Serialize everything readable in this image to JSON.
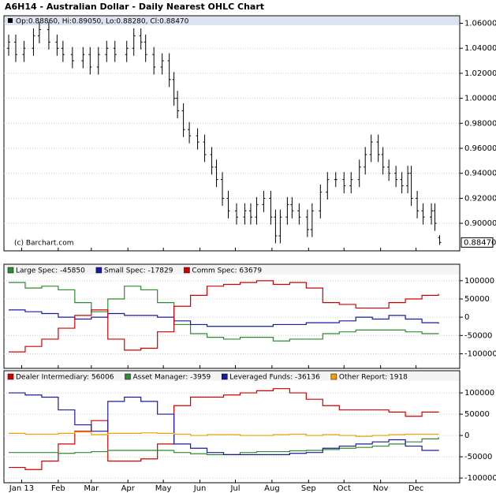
{
  "title": "A6H14 - Australian Dollar - Daily Nearest OHLC Chart",
  "chart_data": [
    {
      "type": "ohlc",
      "legend_text": "Op:0.88860, Hi:0.89050, Lo:0.88280, Cl:0.88470",
      "copyright": "(c) Barchart.com",
      "last_label": "0.88470",
      "color": "#000000",
      "xlim": [
        -15,
        371
      ],
      "ylim": [
        0.878,
        1.066
      ],
      "yticks": [
        {
          "value": 0.9,
          "label": "0.90000"
        },
        {
          "value": 0.92,
          "label": "0.92000"
        },
        {
          "value": 0.94,
          "label": "0.94000"
        },
        {
          "value": 0.96,
          "label": "0.96000"
        },
        {
          "value": 0.98,
          "label": "0.98000"
        },
        {
          "value": 1.0,
          "label": "1.00000"
        },
        {
          "value": 1.02,
          "label": "1.02000"
        },
        {
          "value": 1.04,
          "label": "1.04000"
        },
        {
          "value": 1.06,
          "label": "1.06000"
        }
      ],
      "x": [
        -11,
        -5,
        2,
        10,
        15,
        23,
        30,
        35,
        43,
        52,
        58,
        65,
        72,
        79,
        89,
        95,
        101,
        105,
        112,
        119,
        125,
        129,
        132,
        137,
        142,
        149,
        155,
        161,
        165,
        170,
        175,
        182,
        189,
        194,
        199,
        205,
        211,
        215,
        219,
        225,
        229,
        235,
        242,
        246,
        253,
        259,
        266,
        273,
        279,
        286,
        291,
        296,
        302,
        306,
        311,
        317,
        322,
        327,
        330,
        335,
        340,
        347,
        350,
        354
      ],
      "open": [
        1.04,
        1.045,
        1.035,
        1.04,
        1.05,
        1.055,
        1.045,
        1.04,
        1.035,
        1.03,
        1.035,
        1.025,
        1.035,
        1.04,
        1.035,
        1.04,
        1.05,
        1.045,
        1.035,
        1.025,
        1.03,
        1.015,
        1.0,
        0.99,
        0.975,
        0.97,
        0.965,
        0.955,
        0.945,
        0.935,
        0.92,
        0.91,
        0.905,
        0.91,
        0.905,
        0.915,
        0.92,
        0.905,
        0.89,
        0.905,
        0.915,
        0.91,
        0.905,
        0.895,
        0.91,
        0.925,
        0.935,
        0.935,
        0.93,
        0.935,
        0.945,
        0.955,
        0.965,
        0.955,
        0.945,
        0.94,
        0.935,
        0.93,
        0.94,
        0.92,
        0.91,
        0.905,
        0.91,
        0.8886
      ],
      "high": [
        1.051,
        1.051,
        1.046,
        1.056,
        1.061,
        1.061,
        1.051,
        1.046,
        1.041,
        1.041,
        1.041,
        1.041,
        1.046,
        1.046,
        1.046,
        1.056,
        1.056,
        1.051,
        1.041,
        1.036,
        1.036,
        1.021,
        1.006,
        0.996,
        0.981,
        0.976,
        0.971,
        0.961,
        0.951,
        0.941,
        0.926,
        0.916,
        0.916,
        0.916,
        0.921,
        0.926,
        0.926,
        0.911,
        0.911,
        0.921,
        0.921,
        0.916,
        0.911,
        0.916,
        0.931,
        0.941,
        0.941,
        0.941,
        0.941,
        0.951,
        0.961,
        0.971,
        0.971,
        0.961,
        0.951,
        0.946,
        0.941,
        0.946,
        0.946,
        0.926,
        0.916,
        0.916,
        0.916,
        0.8905
      ],
      "low": [
        1.034,
        1.029,
        1.029,
        1.034,
        1.044,
        1.039,
        1.034,
        1.029,
        1.024,
        1.024,
        1.019,
        1.019,
        1.029,
        1.029,
        1.029,
        1.034,
        1.039,
        1.029,
        1.019,
        1.019,
        1.009,
        0.994,
        0.984,
        0.969,
        0.964,
        0.959,
        0.949,
        0.939,
        0.929,
        0.914,
        0.904,
        0.899,
        0.899,
        0.899,
        0.899,
        0.909,
        0.899,
        0.884,
        0.884,
        0.899,
        0.904,
        0.899,
        0.889,
        0.889,
        0.904,
        0.919,
        0.929,
        0.924,
        0.924,
        0.929,
        0.939,
        0.949,
        0.949,
        0.939,
        0.934,
        0.929,
        0.924,
        0.924,
        0.914,
        0.904,
        0.899,
        0.899,
        0.894,
        0.8828
      ],
      "close": [
        1.045,
        1.035,
        1.04,
        1.05,
        1.055,
        1.045,
        1.04,
        1.035,
        1.03,
        1.035,
        1.025,
        1.035,
        1.04,
        1.035,
        1.04,
        1.05,
        1.045,
        1.035,
        1.025,
        1.03,
        1.015,
        1.0,
        0.99,
        0.975,
        0.97,
        0.965,
        0.955,
        0.945,
        0.935,
        0.92,
        0.91,
        0.905,
        0.91,
        0.905,
        0.915,
        0.92,
        0.905,
        0.89,
        0.905,
        0.915,
        0.91,
        0.905,
        0.895,
        0.91,
        0.925,
        0.935,
        0.935,
        0.93,
        0.935,
        0.945,
        0.955,
        0.965,
        0.955,
        0.945,
        0.94,
        0.935,
        0.93,
        0.94,
        0.92,
        0.91,
        0.905,
        0.91,
        0.9,
        0.8847
      ]
    },
    {
      "type": "step",
      "xlim": [
        -15,
        371
      ],
      "ylim": [
        -140000,
        145000
      ],
      "yticks": [
        -100000,
        -50000,
        0,
        50000,
        100000
      ],
      "x": [
        -11,
        3,
        17,
        31,
        45,
        59,
        73,
        87,
        101,
        115,
        129,
        143,
        157,
        171,
        185,
        199,
        213,
        227,
        241,
        255,
        269,
        283,
        297,
        311,
        325,
        339,
        353
      ],
      "series": [
        {
          "name": "Large Spec: -45850",
          "color": "#2e8b2e",
          "values": [
            95000,
            80000,
            85000,
            75000,
            40000,
            15000,
            50000,
            85000,
            75000,
            40000,
            -20000,
            -45000,
            -55000,
            -60000,
            -55000,
            -55000,
            -65000,
            -60000,
            -60000,
            -45000,
            -40000,
            -35000,
            -35000,
            -35000,
            -40000,
            -45000,
            -45850
          ]
        },
        {
          "name": "Small Spec: -17829",
          "color": "#1a1aa0",
          "values": [
            20000,
            15000,
            10000,
            0,
            -5000,
            0,
            10000,
            5000,
            5000,
            0,
            -10000,
            -20000,
            -25000,
            -25000,
            -25000,
            -25000,
            -20000,
            -20000,
            -15000,
            -15000,
            -10000,
            0,
            -5000,
            5000,
            -5000,
            -15000,
            -17829
          ]
        },
        {
          "name": "Comm Spec: 63679",
          "color": "#d00000",
          "values": [
            -95000,
            -80000,
            -60000,
            -30000,
            5000,
            20000,
            -60000,
            -90000,
            -85000,
            -40000,
            30000,
            60000,
            85000,
            90000,
            95000,
            100000,
            90000,
            95000,
            80000,
            40000,
            35000,
            25000,
            25000,
            40000,
            50000,
            60000,
            63679
          ]
        }
      ]
    },
    {
      "type": "step",
      "xlim": [
        -15,
        371
      ],
      "ylim": [
        -111000,
        152000
      ],
      "yticks": [
        -100000,
        -50000,
        0,
        50000,
        100000
      ],
      "xticks": [
        {
          "value": 0,
          "label": "Jan 13"
        },
        {
          "value": 31,
          "label": "Feb"
        },
        {
          "value": 59,
          "label": "Mar"
        },
        {
          "value": 90,
          "label": "Apr"
        },
        {
          "value": 120,
          "label": "May"
        },
        {
          "value": 151,
          "label": "Jun"
        },
        {
          "value": 181,
          "label": "Jul"
        },
        {
          "value": 212,
          "label": "Aug"
        },
        {
          "value": 243,
          "label": "Sep"
        },
        {
          "value": 273,
          "label": "Oct"
        },
        {
          "value": 304,
          "label": "Nov"
        },
        {
          "value": 334,
          "label": "Dec"
        }
      ],
      "x": [
        -11,
        3,
        17,
        31,
        45,
        59,
        73,
        87,
        101,
        115,
        129,
        143,
        157,
        171,
        185,
        199,
        213,
        227,
        241,
        255,
        269,
        283,
        297,
        311,
        325,
        339,
        353
      ],
      "series": [
        {
          "name": "Dealer Intermediary: 56006",
          "color": "#d00000",
          "values": [
            -75000,
            -80000,
            -60000,
            -20000,
            10000,
            35000,
            -60000,
            -60000,
            -55000,
            -20000,
            70000,
            90000,
            90000,
            95000,
            100000,
            105000,
            110000,
            100000,
            85000,
            70000,
            60000,
            60000,
            60000,
            55000,
            45000,
            55000,
            56006
          ]
        },
        {
          "name": "Asset Manager: -3959",
          "color": "#2e8b2e",
          "values": [
            -40000,
            -40000,
            -40000,
            -42000,
            -40000,
            -38000,
            -35000,
            -35000,
            -35000,
            -35000,
            -40000,
            -43000,
            -45000,
            -45000,
            -40000,
            -38000,
            -38000,
            -36000,
            -35000,
            -33000,
            -30000,
            -28000,
            -25000,
            -20000,
            -15000,
            -8000,
            -3959
          ]
        },
        {
          "name": "Leveraged Funds: -36136",
          "color": "#1a1aa0",
          "values": [
            100000,
            95000,
            90000,
            60000,
            25000,
            10000,
            80000,
            90000,
            80000,
            50000,
            -20000,
            -30000,
            -40000,
            -45000,
            -45000,
            -45000,
            -45000,
            -42000,
            -40000,
            -30000,
            -25000,
            -20000,
            -15000,
            -10000,
            -25000,
            -35000,
            -36136
          ]
        },
        {
          "name": "Other Report: 1918",
          "color": "#f0a000",
          "values": [
            5000,
            3000,
            3000,
            5000,
            8000,
            2000,
            5000,
            5000,
            6000,
            5000,
            3000,
            0,
            2000,
            2000,
            0,
            0,
            2000,
            3000,
            0,
            2000,
            0,
            -2000,
            0,
            2000,
            3000,
            3000,
            1918
          ]
        }
      ]
    }
  ]
}
